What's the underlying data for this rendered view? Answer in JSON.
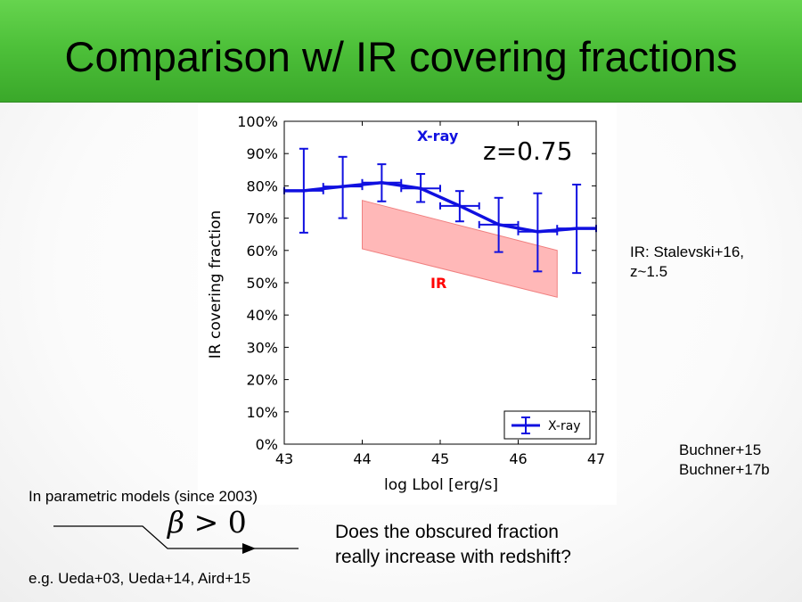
{
  "slide": {
    "title": "Comparison w/ IR covering fractions",
    "ir_note_line1": "IR: Stalevski+16,",
    "ir_note_line2": "z~1.5",
    "ref_line1": "Buchner+15",
    "ref_line2": "Buchner+17b",
    "param_note": "In parametric models (since 2003)",
    "formula_symbol": "β",
    "formula_rest": "> 0",
    "examples_note": "e.g. Ueda+03, Ueda+14, Aird+15",
    "question_line1": "Does the obscured fraction",
    "question_line2": "really increase with redshift?"
  },
  "chart_data": {
    "type": "line",
    "xlabel": "log Lbol [erg/s]",
    "ylabel": "IR covering fraction",
    "xlim": [
      43,
      47
    ],
    "ylim": [
      0,
      100
    ],
    "x_ticks": [
      "43",
      "44",
      "45",
      "46",
      "47"
    ],
    "y_ticks": [
      "0%",
      "10%",
      "20%",
      "30%",
      "40%",
      "50%",
      "60%",
      "70%",
      "80%",
      "90%",
      "100%"
    ],
    "annotation": "z=0.75",
    "series_labels": {
      "xray": "X-ray",
      "ir": "IR"
    },
    "legend": {
      "label": "X-ray",
      "placement": "bottom-right"
    },
    "colors": {
      "xray": "#1010e0",
      "ir_band": "#ffb0b0",
      "ir_text": "#ff0000"
    },
    "xray": {
      "x": [
        43.25,
        43.75,
        44.25,
        44.75,
        45.25,
        45.75,
        46.25,
        46.75
      ],
      "y": [
        78.5,
        79.8,
        81.0,
        79.2,
        73.8,
        68.0,
        65.8,
        66.8
      ],
      "y_low": [
        65.5,
        70.0,
        75.2,
        75.0,
        69.0,
        59.5,
        53.5,
        53.0
      ],
      "y_high": [
        91.5,
        89.0,
        86.7,
        83.7,
        78.4,
        76.3,
        77.7,
        80.4
      ],
      "x_low": [
        43.0,
        43.5,
        44.0,
        44.5,
        45.0,
        45.5,
        46.0,
        46.5
      ],
      "x_high": [
        43.5,
        44.0,
        44.5,
        45.0,
        45.5,
        46.0,
        46.5,
        47.0
      ]
    },
    "ir_band": {
      "x": [
        44.0,
        46.5
      ],
      "upper": [
        75.5,
        60.0
      ],
      "lower": [
        60.5,
        45.5
      ]
    }
  }
}
